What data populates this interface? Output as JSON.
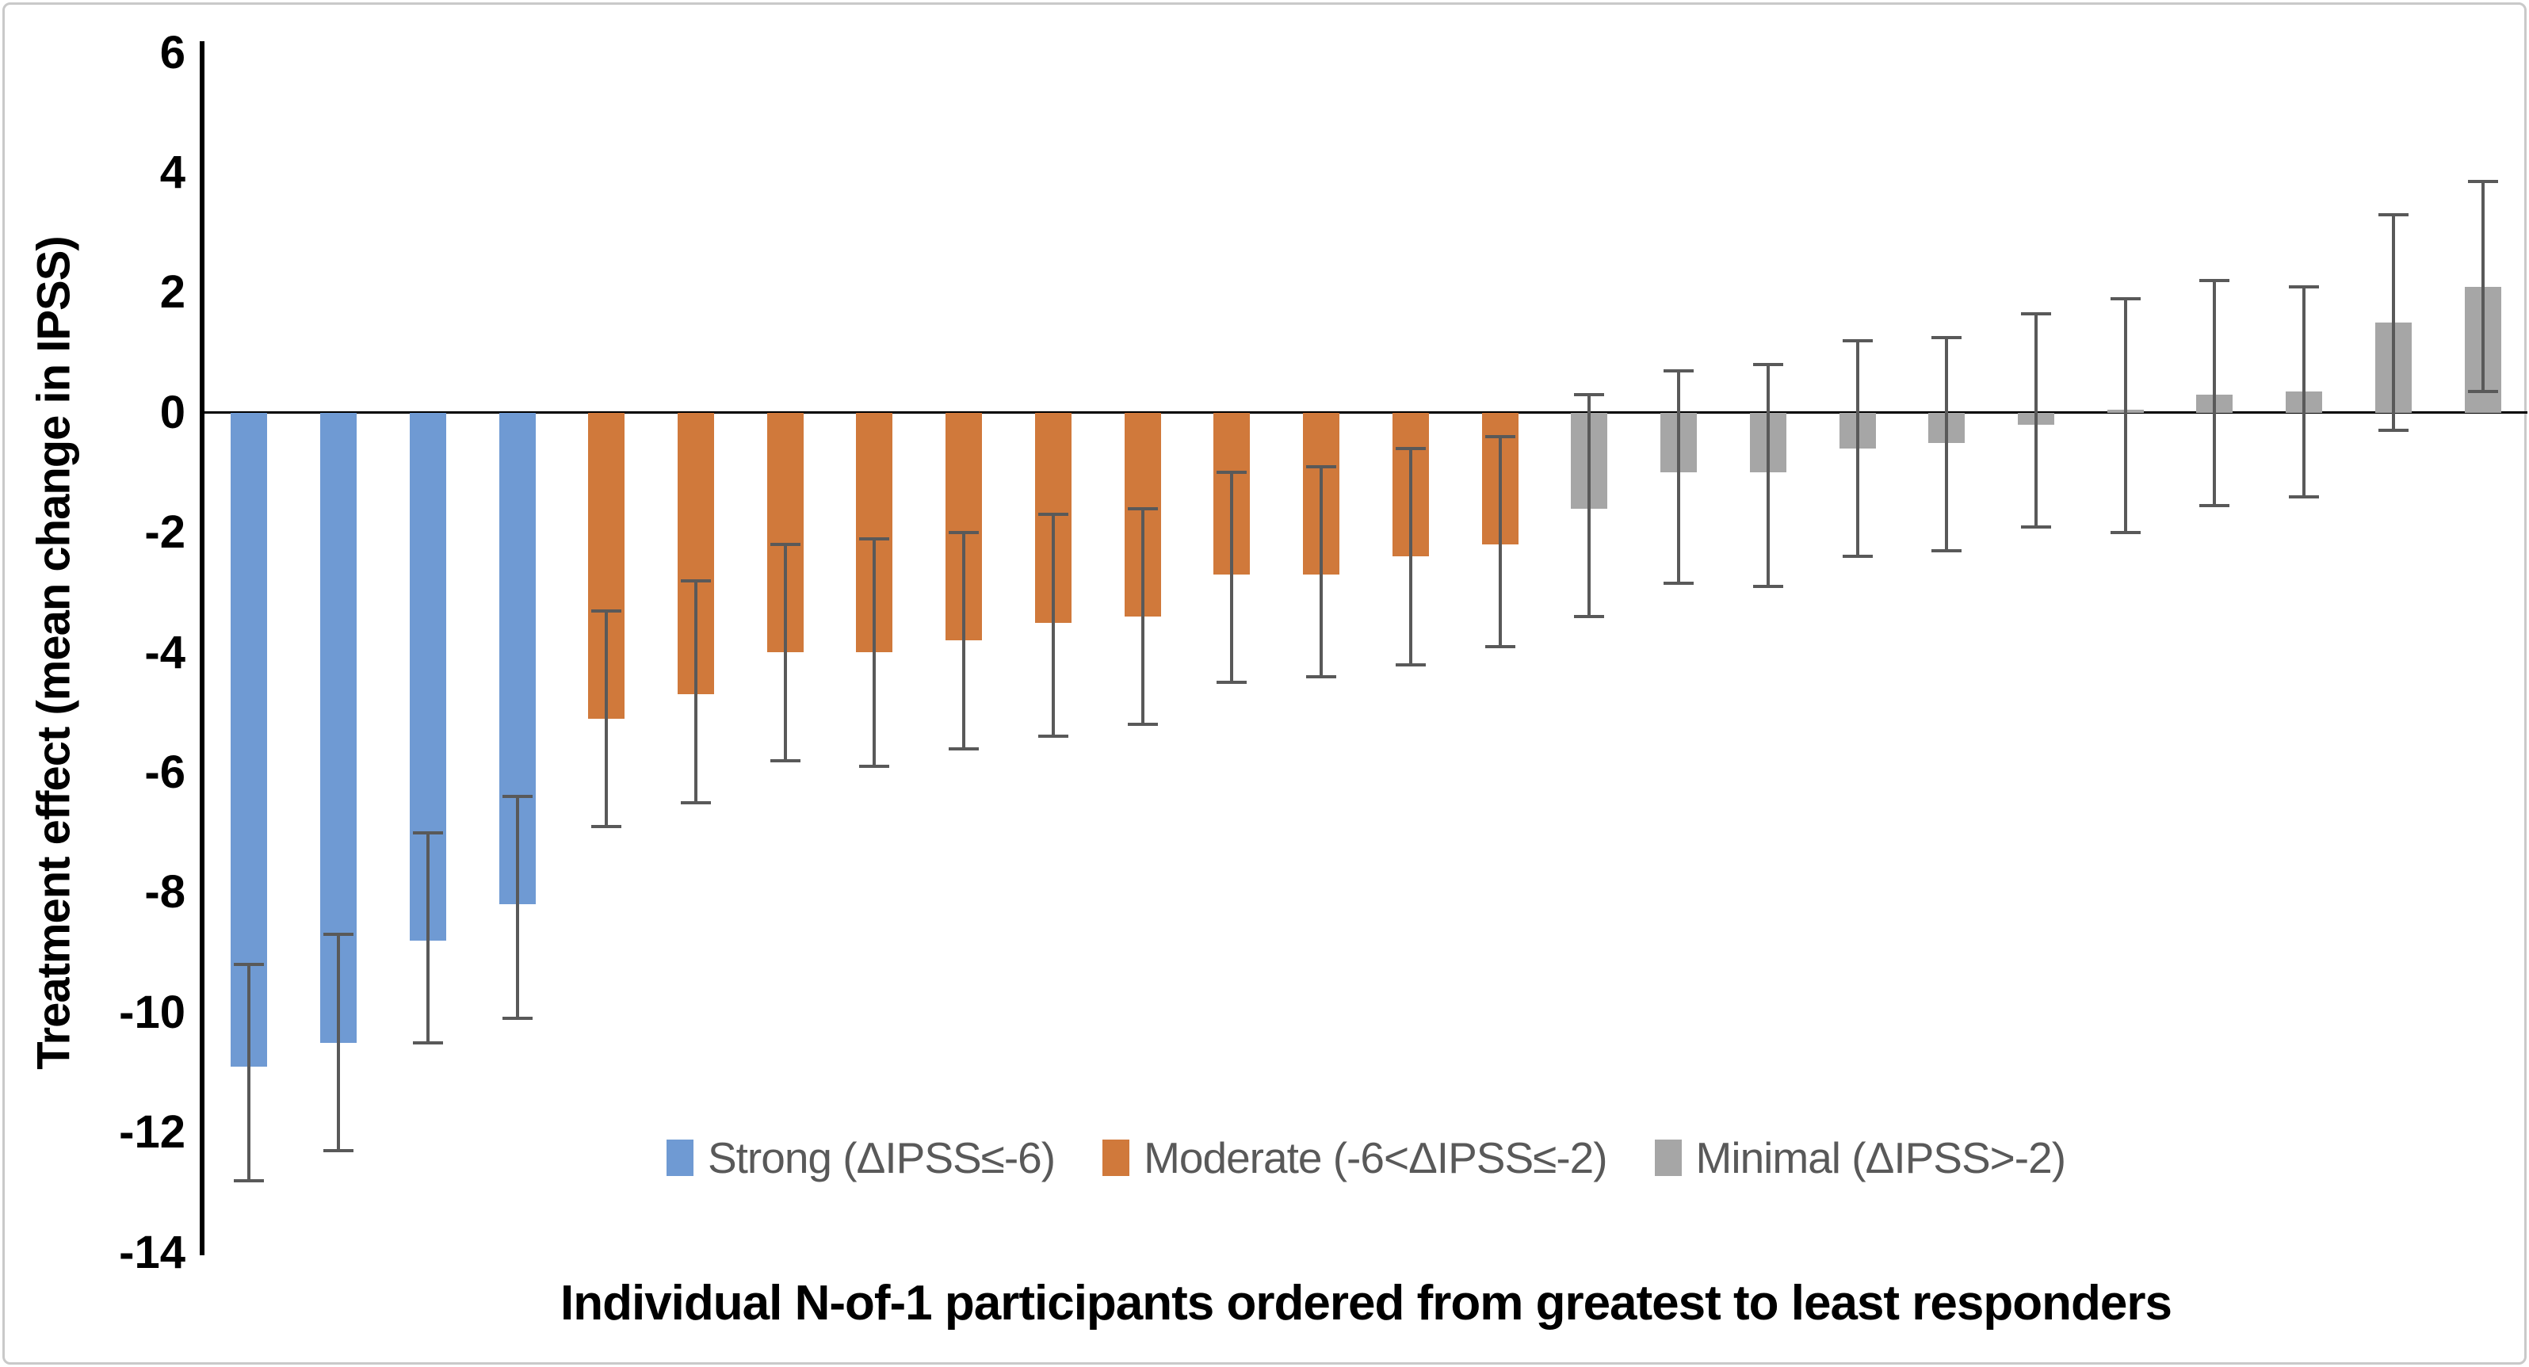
{
  "chart_data": {
    "type": "bar",
    "title": "",
    "xlabel": "Individual N-of-1 participants ordered from greatest to least responders",
    "ylabel": "Treatment effect (mean change in IPSS)",
    "ylim": [
      -14,
      6
    ],
    "ytick_step": 2,
    "grid": false,
    "zero_line": true,
    "legend_position": "bottom center, inside plot",
    "n_participants": 26,
    "categories": [],
    "yticks": [
      {
        "label": "6",
        "value": 6
      },
      {
        "label": "4",
        "value": 4
      },
      {
        "label": "2",
        "value": 2
      },
      {
        "label": "0",
        "value": 0
      },
      {
        "label": "-2",
        "value": -2
      },
      {
        "label": "-4",
        "value": -4
      },
      {
        "label": "-6",
        "value": -6
      },
      {
        "label": "-8",
        "value": -8
      },
      {
        "label": "-10",
        "value": -10
      },
      {
        "label": "-12",
        "value": -12
      },
      {
        "label": "-14",
        "value": -14
      }
    ],
    "groups": {
      "strong": {
        "label": "Strong (ΔIPSS≤-6)",
        "color": "#6f9ad3"
      },
      "moderate": {
        "label": "Moderate (-6<ΔIPSS≤-2)",
        "color": "#d0793b"
      },
      "minimal": {
        "label": "Minimal (ΔIPSS>-2)",
        "color": "#a6a6a6"
      }
    },
    "legend_order": [
      "strong",
      "moderate",
      "minimal"
    ],
    "error_bar_color": "#595959",
    "bars": [
      {
        "value": -10.9,
        "ci_high": -9.2,
        "ci_low": -12.8,
        "group": "strong"
      },
      {
        "value": -10.5,
        "ci_high": -8.7,
        "ci_low": -12.3,
        "group": "strong"
      },
      {
        "value": -8.8,
        "ci_high": -7.0,
        "ci_low": -10.5,
        "group": "strong"
      },
      {
        "value": -8.2,
        "ci_high": -6.4,
        "ci_low": -10.1,
        "group": "strong"
      },
      {
        "value": -5.1,
        "ci_high": -3.3,
        "ci_low": -6.9,
        "group": "moderate"
      },
      {
        "value": -4.7,
        "ci_high": -2.8,
        "ci_low": -6.5,
        "group": "moderate"
      },
      {
        "value": -4.0,
        "ci_high": -2.2,
        "ci_low": -5.8,
        "group": "moderate"
      },
      {
        "value": -4.0,
        "ci_high": -2.1,
        "ci_low": -5.9,
        "group": "moderate"
      },
      {
        "value": -3.8,
        "ci_high": -2.0,
        "ci_low": -5.6,
        "group": "moderate"
      },
      {
        "value": -3.5,
        "ci_high": -1.7,
        "ci_low": -5.4,
        "group": "moderate"
      },
      {
        "value": -3.4,
        "ci_high": -1.6,
        "ci_low": -5.2,
        "group": "moderate"
      },
      {
        "value": -2.7,
        "ci_high": -1.0,
        "ci_low": -4.5,
        "group": "moderate"
      },
      {
        "value": -2.7,
        "ci_high": -0.9,
        "ci_low": -4.4,
        "group": "moderate"
      },
      {
        "value": -2.4,
        "ci_high": -0.6,
        "ci_low": -4.2,
        "group": "moderate"
      },
      {
        "value": -2.2,
        "ci_high": -0.4,
        "ci_low": -3.9,
        "group": "moderate"
      },
      {
        "value": -1.6,
        "ci_high": 0.3,
        "ci_low": -3.4,
        "group": "minimal"
      },
      {
        "value": -1.0,
        "ci_high": 0.7,
        "ci_low": -2.85,
        "group": "minimal"
      },
      {
        "value": -1.0,
        "ci_high": 0.8,
        "ci_low": -2.9,
        "group": "minimal"
      },
      {
        "value": -0.6,
        "ci_high": 1.2,
        "ci_low": -2.4,
        "group": "minimal"
      },
      {
        "value": -0.5,
        "ci_high": 1.25,
        "ci_low": -2.3,
        "group": "minimal"
      },
      {
        "value": -0.2,
        "ci_high": 1.65,
        "ci_low": -1.9,
        "group": "minimal"
      },
      {
        "value": 0.05,
        "ci_high": 1.9,
        "ci_low": -2.0,
        "group": "minimal"
      },
      {
        "value": 0.3,
        "ci_high": 2.2,
        "ci_low": -1.55,
        "group": "minimal"
      },
      {
        "value": 0.35,
        "ci_high": 2.1,
        "ci_low": -1.4,
        "group": "minimal"
      },
      {
        "value": 1.5,
        "ci_high": 3.3,
        "ci_low": -0.3,
        "group": "minimal"
      },
      {
        "value": 2.1,
        "ci_high": 3.85,
        "ci_low": 0.35,
        "group": "minimal"
      }
    ]
  }
}
